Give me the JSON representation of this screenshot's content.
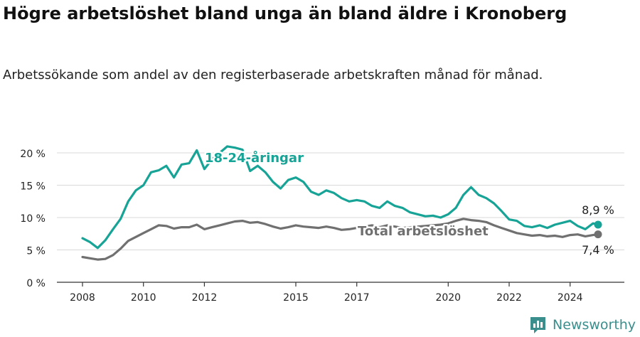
{
  "title": "Högre arbetslöshet bland unga än bland äldre i Kronoberg",
  "subtitle": "Arbetssökande som andel av den registerbaserade arbetskraften månad för månad.",
  "brand": "Newsworthy",
  "colors": {
    "youth": "#17a497",
    "total": "#707070",
    "grid": "#d9d9d9",
    "axis": "#333333",
    "brand": "#3a8f8d"
  },
  "chart_data": {
    "type": "line",
    "x_ticks": [
      "2008",
      "2010",
      "2012",
      "2015",
      "2017",
      "2020",
      "2022",
      "2024"
    ],
    "y_ticks": [
      "0 %",
      "5 %",
      "10 %",
      "15 %",
      "20 %"
    ],
    "ylim": [
      0,
      20
    ],
    "xlim": [
      "2008-01",
      "2024-12"
    ],
    "grid": true,
    "series": [
      {
        "name": "18-24-åringar",
        "end_label": "8,9 %",
        "points": [
          [
            "2008-01",
            6.8
          ],
          [
            "2008-04",
            6.2
          ],
          [
            "2008-07",
            5.3
          ],
          [
            "2008-10",
            6.5
          ],
          [
            "2009-01",
            8.2
          ],
          [
            "2009-04",
            9.8
          ],
          [
            "2009-07",
            12.5
          ],
          [
            "2009-10",
            14.2
          ],
          [
            "2010-01",
            15.0
          ],
          [
            "2010-04",
            17.0
          ],
          [
            "2010-07",
            17.3
          ],
          [
            "2010-10",
            18.0
          ],
          [
            "2011-01",
            16.2
          ],
          [
            "2011-04",
            18.2
          ],
          [
            "2011-07",
            18.4
          ],
          [
            "2011-10",
            20.4
          ],
          [
            "2012-01",
            17.5
          ],
          [
            "2012-04",
            19.0
          ],
          [
            "2012-07",
            20.0
          ],
          [
            "2012-10",
            21.0
          ],
          [
            "2013-01",
            20.8
          ],
          [
            "2013-04",
            20.5
          ],
          [
            "2013-07",
            17.2
          ],
          [
            "2013-10",
            18.0
          ],
          [
            "2014-01",
            17.0
          ],
          [
            "2014-04",
            15.5
          ],
          [
            "2014-07",
            14.5
          ],
          [
            "2014-10",
            15.8
          ],
          [
            "2015-01",
            16.2
          ],
          [
            "2015-04",
            15.5
          ],
          [
            "2015-07",
            14.0
          ],
          [
            "2015-10",
            13.5
          ],
          [
            "2016-01",
            14.2
          ],
          [
            "2016-04",
            13.8
          ],
          [
            "2016-07",
            13.0
          ],
          [
            "2016-10",
            12.5
          ],
          [
            "2017-01",
            12.7
          ],
          [
            "2017-04",
            12.5
          ],
          [
            "2017-07",
            11.8
          ],
          [
            "2017-10",
            11.5
          ],
          [
            "2018-01",
            12.5
          ],
          [
            "2018-04",
            11.8
          ],
          [
            "2018-07",
            11.5
          ],
          [
            "2018-10",
            10.8
          ],
          [
            "2019-01",
            10.5
          ],
          [
            "2019-04",
            10.2
          ],
          [
            "2019-07",
            10.3
          ],
          [
            "2019-10",
            10.0
          ],
          [
            "2020-01",
            10.5
          ],
          [
            "2020-04",
            11.5
          ],
          [
            "2020-07",
            13.5
          ],
          [
            "2020-10",
            14.7
          ],
          [
            "2021-01",
            13.5
          ],
          [
            "2021-04",
            13.0
          ],
          [
            "2021-07",
            12.2
          ],
          [
            "2021-10",
            11.0
          ],
          [
            "2022-01",
            9.7
          ],
          [
            "2022-04",
            9.5
          ],
          [
            "2022-07",
            8.7
          ],
          [
            "2022-10",
            8.5
          ],
          [
            "2023-01",
            8.8
          ],
          [
            "2023-04",
            8.4
          ],
          [
            "2023-07",
            8.9
          ],
          [
            "2023-10",
            9.2
          ],
          [
            "2024-01",
            9.5
          ],
          [
            "2024-04",
            8.7
          ],
          [
            "2024-07",
            8.2
          ],
          [
            "2024-10",
            9.1
          ],
          [
            "2024-12",
            8.9
          ]
        ]
      },
      {
        "name": "Total arbetslöshet",
        "end_label": "7,4 %",
        "points": [
          [
            "2008-01",
            3.9
          ],
          [
            "2008-04",
            3.7
          ],
          [
            "2008-07",
            3.5
          ],
          [
            "2008-10",
            3.6
          ],
          [
            "2009-01",
            4.2
          ],
          [
            "2009-04",
            5.2
          ],
          [
            "2009-07",
            6.4
          ],
          [
            "2009-10",
            7.0
          ],
          [
            "2010-01",
            7.6
          ],
          [
            "2010-04",
            8.2
          ],
          [
            "2010-07",
            8.8
          ],
          [
            "2010-10",
            8.7
          ],
          [
            "2011-01",
            8.3
          ],
          [
            "2011-04",
            8.5
          ],
          [
            "2011-07",
            8.5
          ],
          [
            "2011-10",
            8.9
          ],
          [
            "2012-01",
            8.2
          ],
          [
            "2012-04",
            8.5
          ],
          [
            "2012-07",
            8.8
          ],
          [
            "2012-10",
            9.1
          ],
          [
            "2013-01",
            9.4
          ],
          [
            "2013-04",
            9.5
          ],
          [
            "2013-07",
            9.2
          ],
          [
            "2013-10",
            9.3
          ],
          [
            "2014-01",
            9.0
          ],
          [
            "2014-04",
            8.6
          ],
          [
            "2014-07",
            8.3
          ],
          [
            "2014-10",
            8.5
          ],
          [
            "2015-01",
            8.8
          ],
          [
            "2015-04",
            8.6
          ],
          [
            "2015-07",
            8.5
          ],
          [
            "2015-10",
            8.4
          ],
          [
            "2016-01",
            8.6
          ],
          [
            "2016-04",
            8.4
          ],
          [
            "2016-07",
            8.1
          ],
          [
            "2016-10",
            8.2
          ],
          [
            "2017-01",
            8.4
          ],
          [
            "2017-04",
            8.6
          ],
          [
            "2017-07",
            8.8
          ],
          [
            "2017-10",
            8.5
          ],
          [
            "2018-01",
            8.8
          ],
          [
            "2018-04",
            8.6
          ],
          [
            "2018-07",
            8.4
          ],
          [
            "2018-10",
            8.5
          ],
          [
            "2019-01",
            8.6
          ],
          [
            "2019-04",
            8.7
          ],
          [
            "2019-07",
            8.8
          ],
          [
            "2019-10",
            8.9
          ],
          [
            "2020-01",
            9.1
          ],
          [
            "2020-04",
            9.5
          ],
          [
            "2020-07",
            9.8
          ],
          [
            "2020-10",
            9.6
          ],
          [
            "2021-01",
            9.5
          ],
          [
            "2021-04",
            9.3
          ],
          [
            "2021-07",
            8.8
          ],
          [
            "2021-10",
            8.4
          ],
          [
            "2022-01",
            8.0
          ],
          [
            "2022-04",
            7.6
          ],
          [
            "2022-07",
            7.4
          ],
          [
            "2022-10",
            7.2
          ],
          [
            "2023-01",
            7.3
          ],
          [
            "2023-04",
            7.1
          ],
          [
            "2023-07",
            7.2
          ],
          [
            "2023-10",
            7.0
          ],
          [
            "2024-01",
            7.3
          ],
          [
            "2024-04",
            7.4
          ],
          [
            "2024-07",
            7.1
          ],
          [
            "2024-10",
            7.3
          ],
          [
            "2024-12",
            7.4
          ]
        ]
      }
    ]
  }
}
